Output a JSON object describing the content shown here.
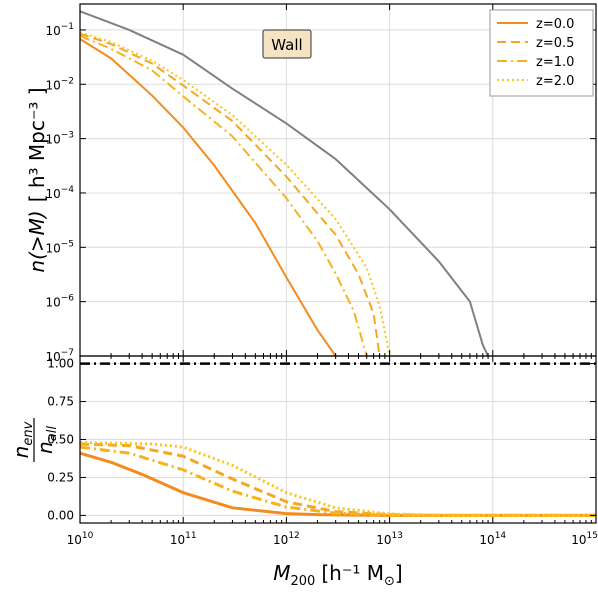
{
  "chart_data": [
    {
      "type": "line",
      "panel": "top",
      "annotation": "Wall",
      "ylabel_main": "n(>M)",
      "ylabel_units": "[ h³ Mpc⁻³ ]",
      "yscale": "log",
      "xscale": "log",
      "xlim": [
        10000000000.0,
        1000000000000000.0
      ],
      "ylim": [
        1e-07,
        0.3
      ],
      "grid": true,
      "legend_position": "top-right",
      "x_tick_values": [
        10000000000.0,
        100000000000.0,
        1000000000000.0,
        10000000000000.0,
        100000000000000.0,
        1000000000000000.0
      ],
      "y_ticks": [
        {
          "v": 1e-07,
          "base": "10",
          "exp": "−7"
        },
        {
          "v": 1e-06,
          "base": "10",
          "exp": "−6"
        },
        {
          "v": 1e-05,
          "base": "10",
          "exp": "−5"
        },
        {
          "v": 0.0001,
          "base": "10",
          "exp": "−4"
        },
        {
          "v": 0.001,
          "base": "10",
          "exp": "−3"
        },
        {
          "v": 0.01,
          "base": "10",
          "exp": "−2"
        },
        {
          "v": 0.1,
          "base": "10",
          "exp": "−1"
        }
      ],
      "series": [
        {
          "name": "z=0.0",
          "color": "#f28c1e",
          "dash": "solid",
          "width": 2,
          "points": [
            [
              10000000000.0,
              0.068
            ],
            [
              20000000000.0,
              0.03
            ],
            [
              50000000000.0,
              0.0062
            ],
            [
              100000000000.0,
              0.0016
            ],
            [
              200000000000.0,
              0.00032
            ],
            [
              500000000000.0,
              2.8e-05
            ],
            [
              1000000000000.0,
              2.8e-06
            ],
            [
              2000000000000.0,
              3e-07
            ],
            [
              3000000000000.0,
              1e-07
            ]
          ]
        },
        {
          "name": "z=0.5",
          "color": "#f5a623",
          "dash": "dashed",
          "width": 2,
          "points": [
            [
              10000000000.0,
              0.085
            ],
            [
              20000000000.0,
              0.055
            ],
            [
              50000000000.0,
              0.024
            ],
            [
              100000000000.0,
              0.0095
            ],
            [
              300000000000.0,
              0.0021
            ],
            [
              1000000000000.0,
              0.0002
            ],
            [
              3000000000000.0,
              1.7e-05
            ],
            [
              5000000000000.0,
              3.2e-06
            ],
            [
              7000000000000.0,
              6e-07
            ],
            [
              8000000000000.0,
              1e-07
            ]
          ]
        },
        {
          "name": "z=1.0",
          "color": "#f7b21c",
          "dash": "dashdot",
          "width": 2,
          "points": [
            [
              10000000000.0,
              0.078
            ],
            [
              20000000000.0,
              0.045
            ],
            [
              50000000000.0,
              0.018
            ],
            [
              100000000000.0,
              0.006
            ],
            [
              300000000000.0,
              0.0011
            ],
            [
              1000000000000.0,
              8e-05
            ],
            [
              2000000000000.0,
              1.3e-05
            ],
            [
              3000000000000.0,
              3.3e-06
            ],
            [
              4500000000000.0,
              6.7e-07
            ],
            [
              6000000000000.0,
              1e-07
            ]
          ]
        },
        {
          "name": "z=2.0",
          "color": "#fcc419",
          "dash": "dotted",
          "width": 2,
          "points": [
            [
              10000000000.0,
              0.09
            ],
            [
              20000000000.0,
              0.06
            ],
            [
              50000000000.0,
              0.027
            ],
            [
              100000000000.0,
              0.012
            ],
            [
              300000000000.0,
              0.0027
            ],
            [
              1000000000000.0,
              0.00033
            ],
            [
              3000000000000.0,
              3.3e-05
            ],
            [
              6000000000000.0,
              4.2e-06
            ],
            [
              8000000000000.0,
              8.5e-07
            ],
            [
              10000000000000.0,
              1e-07
            ]
          ]
        },
        {
          "name": "",
          "color": "#808080",
          "dash": "solid",
          "width": 2,
          "points": [
            [
              10000000000.0,
              0.22
            ],
            [
              30000000000.0,
              0.1
            ],
            [
              100000000000.0,
              0.035
            ],
            [
              300000000000.0,
              0.0083
            ],
            [
              1000000000000.0,
              0.0019
            ],
            [
              3000000000000.0,
              0.00042
            ],
            [
              10000000000000.0,
              5e-05
            ],
            [
              30000000000000.0,
              5.5e-06
            ],
            [
              60000000000000.0,
              1e-06
            ],
            [
              80000000000000.0,
              1.6e-07
            ],
            [
              90000000000000.0,
              1e-07
            ]
          ]
        }
      ]
    },
    {
      "type": "line",
      "panel": "bottom",
      "ylabel_num": "n",
      "ylabel_num_sub": "env",
      "ylabel_den": "n",
      "ylabel_den_sub": "all",
      "xlabel_main": "M",
      "xlabel_sub": "200",
      "xlabel_units": "[h⁻¹ M",
      "xlabel_sun": "⊙",
      "xlabel_close": "]",
      "xscale": "log",
      "xlim": [
        10000000000.0,
        1000000000000000.0
      ],
      "ylim": [
        -0.05,
        1.05
      ],
      "grid": true,
      "y_ticks": [
        {
          "v": 0.0,
          "label": "0.00"
        },
        {
          "v": 0.25,
          "label": "0.25"
        },
        {
          "v": 0.5,
          "label": "0.50"
        },
        {
          "v": 0.75,
          "label": "0.75"
        },
        {
          "v": 1.0,
          "label": "1.00"
        }
      ],
      "x_ticks": [
        {
          "v": 10000000000.0,
          "base": "10",
          "exp": "10"
        },
        {
          "v": 100000000000.0,
          "base": "10",
          "exp": "11"
        },
        {
          "v": 1000000000000.0,
          "base": "10",
          "exp": "12"
        },
        {
          "v": 10000000000000.0,
          "base": "10",
          "exp": "13"
        },
        {
          "v": 100000000000000.0,
          "base": "10",
          "exp": "14"
        },
        {
          "v": 1000000000000000.0,
          "base": "10",
          "exp": "15"
        }
      ],
      "series": [
        {
          "name": "z=0.0",
          "color": "#f28c1e",
          "dash": "solid",
          "width": 3,
          "points": [
            [
              10000000000.0,
              0.41
            ],
            [
              20000000000.0,
              0.35
            ],
            [
              40000000000.0,
              0.27
            ],
            [
              100000000000.0,
              0.15
            ],
            [
              300000000000.0,
              0.05
            ],
            [
              1000000000000.0,
              0.012
            ],
            [
              2000000000000.0,
              0.005
            ],
            [
              10000000000000.0,
              0.0
            ],
            [
              1000000000000000.0,
              0.0
            ]
          ]
        },
        {
          "name": "z=0.5",
          "color": "#f5a623",
          "dash": "dashed",
          "width": 3,
          "points": [
            [
              10000000000.0,
              0.47
            ],
            [
              30000000000.0,
              0.46
            ],
            [
              100000000000.0,
              0.39
            ],
            [
              300000000000.0,
              0.24
            ],
            [
              1000000000000.0,
              0.09
            ],
            [
              3000000000000.0,
              0.025
            ],
            [
              10000000000000.0,
              0.005
            ],
            [
              30000000000000.0,
              0.0
            ],
            [
              1000000000000000.0,
              0.0
            ]
          ]
        },
        {
          "name": "z=1.0",
          "color": "#f7b21c",
          "dash": "dashdot",
          "width": 3,
          "points": [
            [
              10000000000.0,
              0.45
            ],
            [
              30000000000.0,
              0.41
            ],
            [
              100000000000.0,
              0.3
            ],
            [
              300000000000.0,
              0.16
            ],
            [
              1000000000000.0,
              0.055
            ],
            [
              3000000000000.0,
              0.015
            ],
            [
              10000000000000.0,
              0.0
            ],
            [
              1000000000000000.0,
              0.0
            ]
          ]
        },
        {
          "name": "z=2.0",
          "color": "#fcc419",
          "dash": "dotted",
          "width": 3,
          "points": [
            [
              10000000000.0,
              0.48
            ],
            [
              50000000000.0,
              0.47
            ],
            [
              100000000000.0,
              0.45
            ],
            [
              300000000000.0,
              0.33
            ],
            [
              1000000000000.0,
              0.15
            ],
            [
              3000000000000.0,
              0.05
            ],
            [
              10000000000000.0,
              0.01
            ],
            [
              30000000000000.0,
              0.0
            ],
            [
              1000000000000000.0,
              0.0
            ]
          ]
        },
        {
          "name": "",
          "color": "#000000",
          "dash": "dashdot",
          "width": 2.5,
          "points": [
            [
              10000000000.0,
              1.0
            ],
            [
              1000000000000000.0,
              1.0
            ]
          ]
        }
      ]
    }
  ]
}
